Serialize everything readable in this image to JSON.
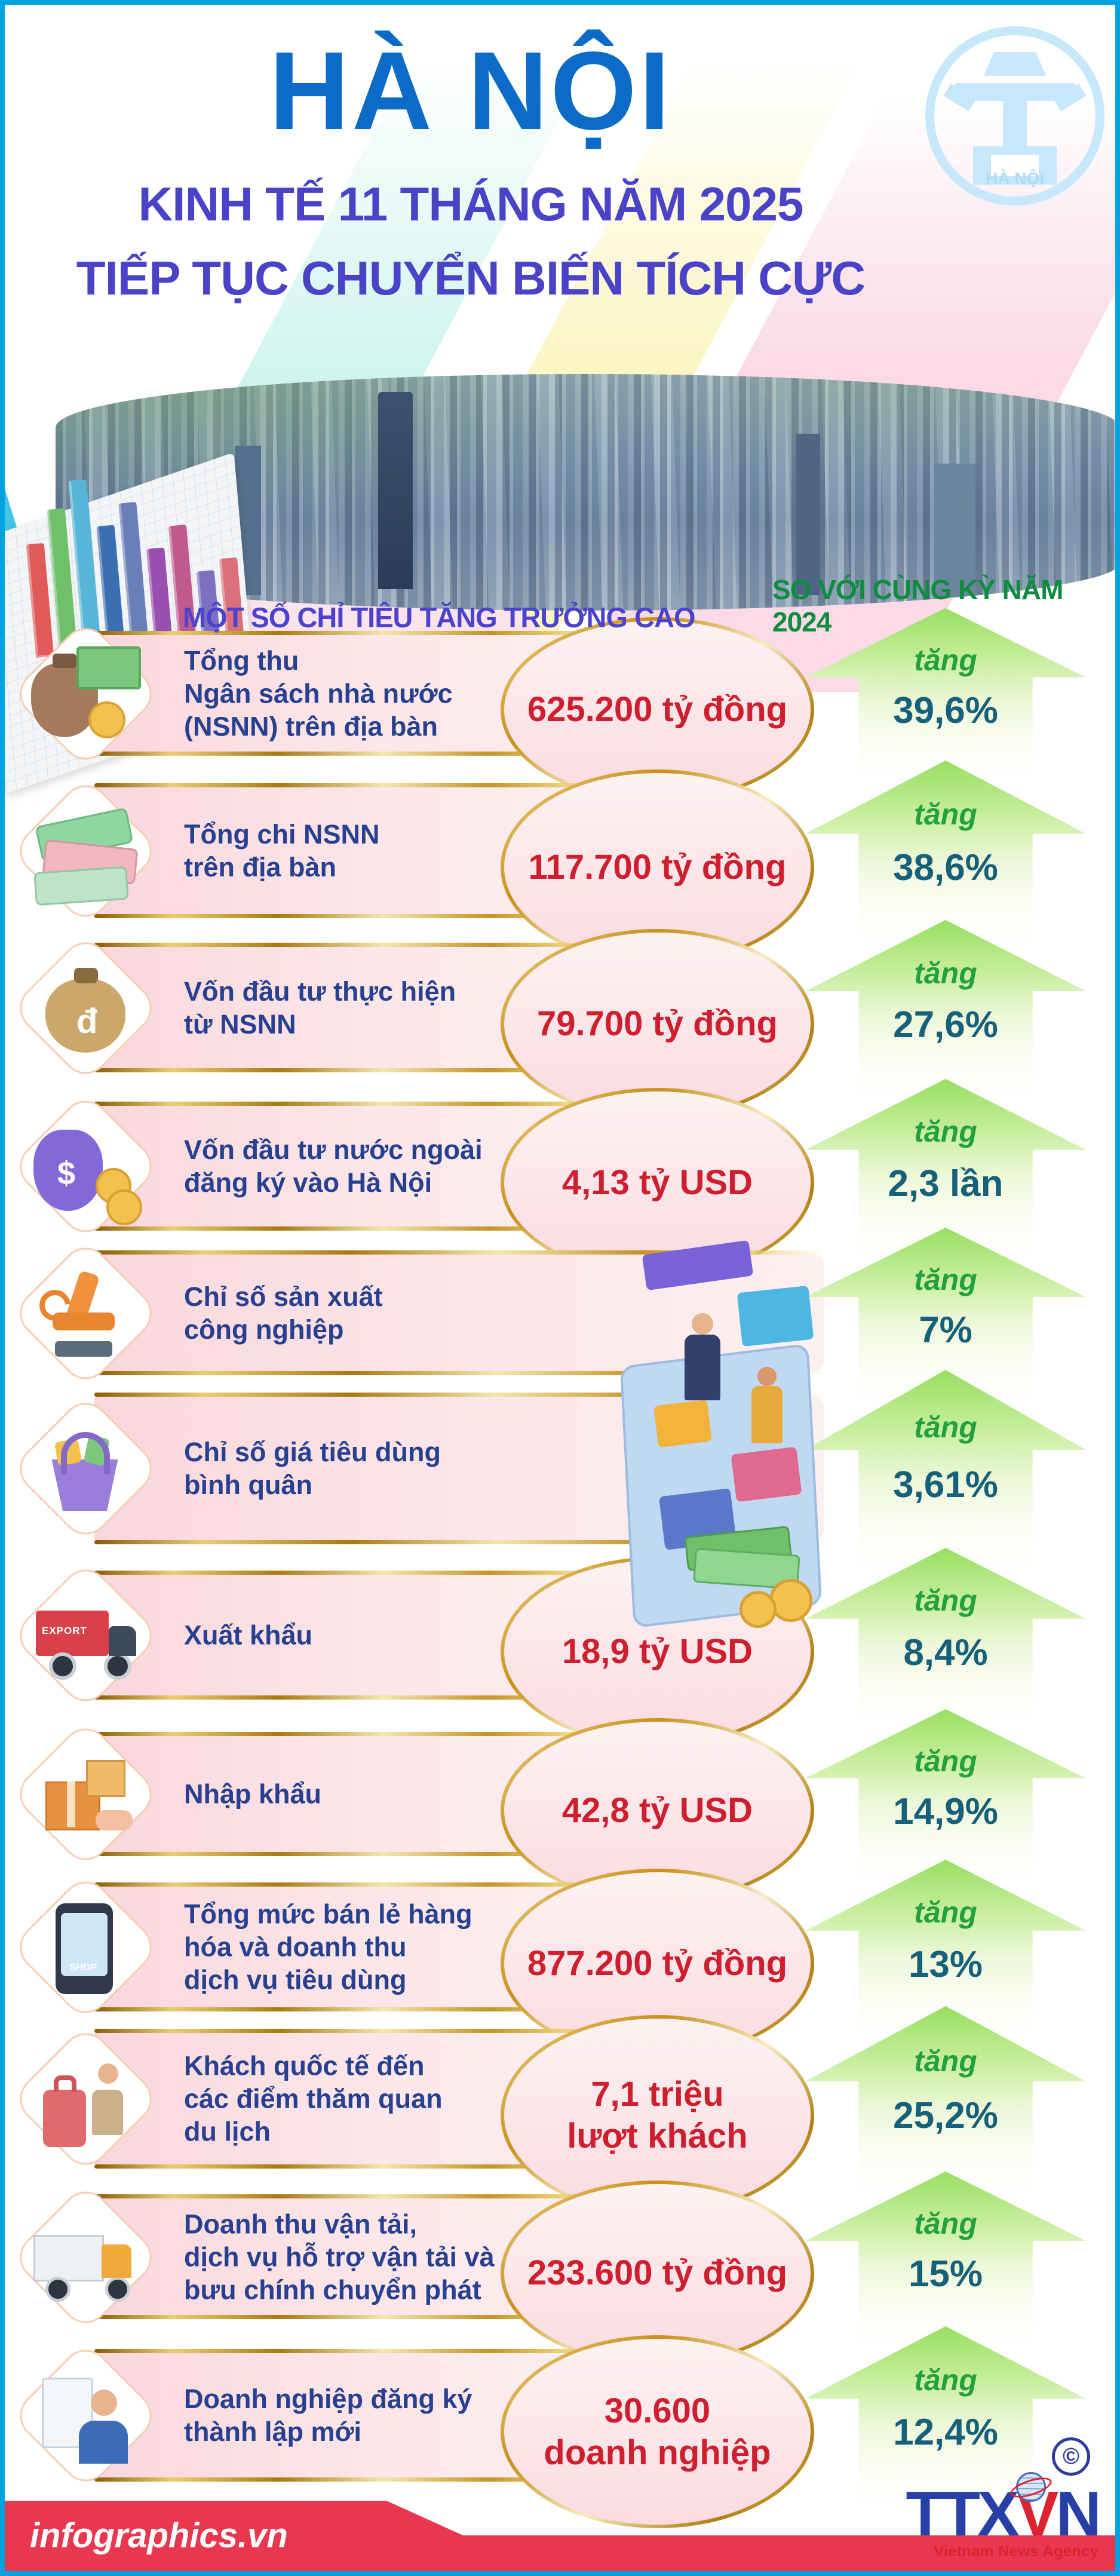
{
  "header": {
    "city_title": "HÀ NỘI",
    "subtitle_line1": "KINH TẾ 11 THÁNG NĂM 2025",
    "subtitle_line2": "TIẾP TỤC CHUYỂN BIẾN TÍCH CỰC",
    "emblem_label": "HÀ NỘI"
  },
  "section": {
    "left_title": "MỘT SỐ CHỈ TIÊU TĂNG TRƯỞNG CAO",
    "right_title": "SO VỚI CÙNG KỲ NĂM 2024"
  },
  "rows": [
    {
      "icon": "money-bag",
      "label_lines": [
        "Tổng thu",
        "Ngân sách nhà nước",
        "(NSNN) trên địa bàn"
      ],
      "value_lines": [
        "625.200 tỷ đồng"
      ],
      "change_prefix": "tăng",
      "change": "39,6%"
    },
    {
      "icon": "cash-bundles",
      "label_lines": [
        "Tổng chi NSNN",
        "trên địa bàn"
      ],
      "value_lines": [
        "117.700 tỷ đồng"
      ],
      "change_prefix": "tăng",
      "change": "38,6%"
    },
    {
      "icon": "money-sack",
      "icon_text": "đ",
      "label_lines": [
        "Vốn đầu tư thực hiện",
        "từ NSNN"
      ],
      "value_lines": [
        "79.700 tỷ đồng"
      ],
      "change_prefix": "tăng",
      "change": "27,6%"
    },
    {
      "icon": "foreign-investment-bag",
      "icon_text": "$",
      "label_lines": [
        "Vốn đầu tư nước ngoài",
        "đăng ký vào Hà Nội"
      ],
      "value_lines": [
        "4,13 tỷ USD"
      ],
      "change_prefix": "tăng",
      "change": "2,3 lần"
    },
    {
      "icon": "robot-arm",
      "label_lines": [
        "Chỉ số sản xuất",
        "công nghiệp"
      ],
      "value_lines": [],
      "change_prefix": "tăng",
      "change": "7%"
    },
    {
      "icon": "shopping-basket",
      "label_lines": [
        "Chỉ số giá tiêu dùng",
        "bình quân"
      ],
      "value_lines": [],
      "change_prefix": "tăng",
      "change": "3,61%"
    },
    {
      "icon": "export-truck",
      "icon_text": "EXPORT",
      "label_lines": [
        "Xuất khẩu"
      ],
      "value_lines": [
        "18,9 tỷ USD"
      ],
      "change_prefix": "tăng",
      "change": "8,4%"
    },
    {
      "icon": "import-boxes",
      "label_lines": [
        "Nhập khẩu"
      ],
      "value_lines": [
        "42,8 tỷ USD"
      ],
      "change_prefix": "tăng",
      "change": "14,9%"
    },
    {
      "icon": "online-shop-phone",
      "icon_text": "SHOP",
      "label_lines": [
        "Tổng mức bán lẻ hàng",
        "hóa và doanh thu",
        "dịch vụ tiêu dùng"
      ],
      "value_lines": [
        "877.200 tỷ đồng"
      ],
      "change_prefix": "tăng",
      "change": "13%"
    },
    {
      "icon": "tourist-luggage",
      "label_lines": [
        "Khách quốc tế đến",
        "các điểm thăm quan",
        "du lịch"
      ],
      "value_lines": [
        "7,1 triệu",
        "lượt khách"
      ],
      "change_prefix": "tăng",
      "change": "25,2%"
    },
    {
      "icon": "delivery-truck",
      "label_lines": [
        "Doanh thu vận tải,",
        "dịch vụ hỗ trợ vận tải và",
        "bưu chính chuyển phát"
      ],
      "value_lines": [
        "233.600 tỷ đồng"
      ],
      "change_prefix": "tăng",
      "change": "15%"
    },
    {
      "icon": "new-business-person",
      "label_lines": [
        "Doanh nghiệp đăng ký",
        "thành lập mới"
      ],
      "value_lines": [
        "30.600",
        "doanh nghiệp"
      ],
      "change_prefix": "tăng",
      "change": "12,4%"
    }
  ],
  "footer": {
    "brand": "infographics.vn",
    "copyright": "©",
    "agency_ttx": "TTX",
    "agency_v": "V",
    "agency_n": "N",
    "agency_name": "Vietnam News Agency"
  },
  "colors": {
    "frame_cyan": "#00A3DE",
    "title_blue": "#0B6BC6",
    "subtitle_purple": "#4A43C8",
    "section_green": "#0E8C40",
    "label_navy": "#27408F",
    "value_red": "#CF1F2F",
    "gold": "#C8901A",
    "banner_pink": "#F9D7DD",
    "arrow_green": "#97DF60",
    "tang_green": "#23A13D",
    "percent_teal": "#16607A",
    "footer_red": "#E93750"
  }
}
